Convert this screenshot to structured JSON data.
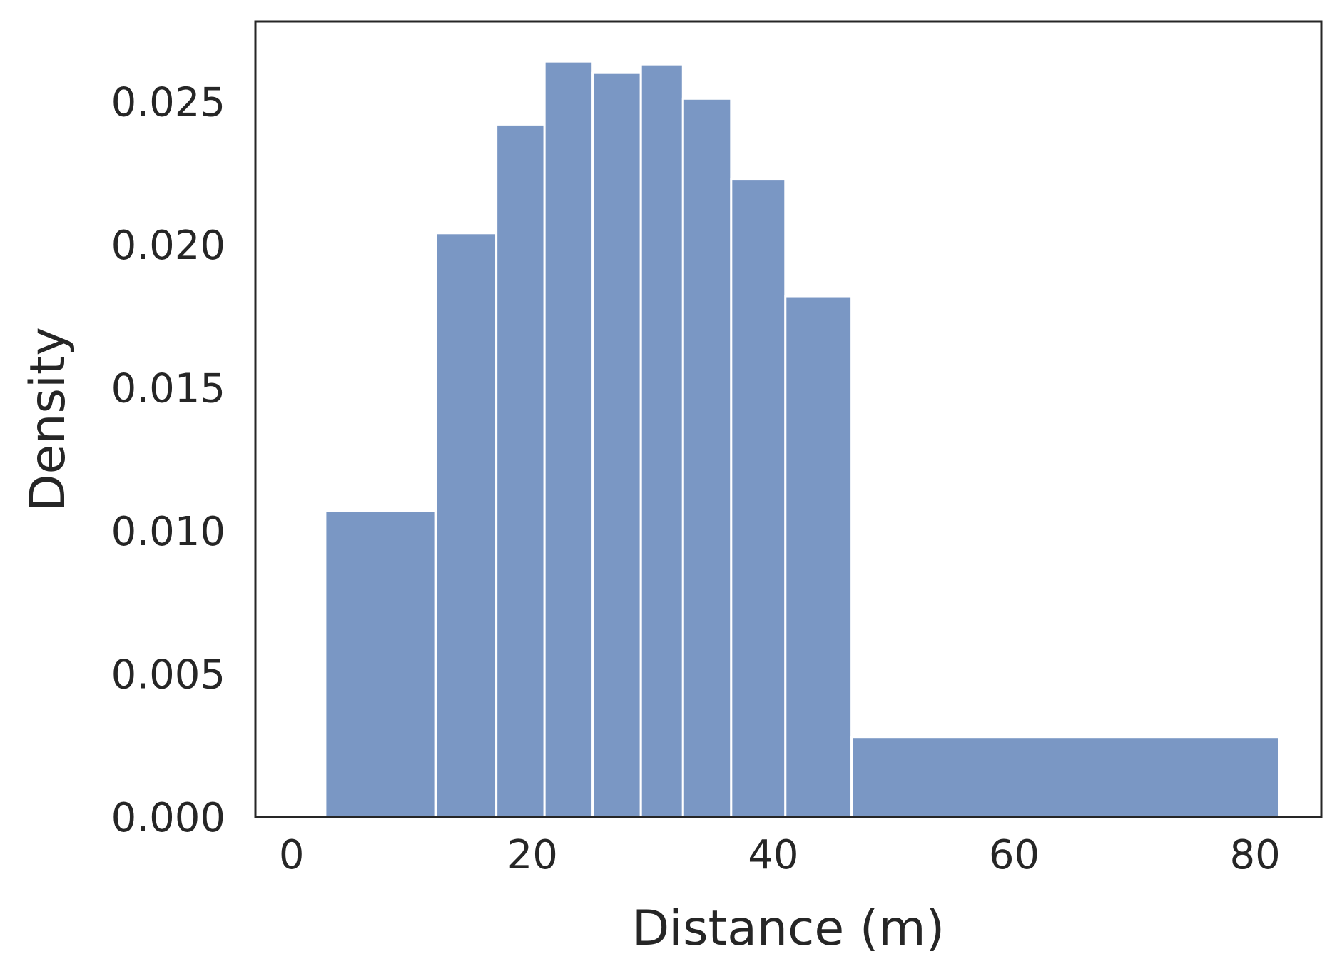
{
  "chart_data": {
    "type": "bar",
    "subtype": "histogram",
    "title": "",
    "xlabel": "Distance (m)",
    "ylabel": "Density",
    "xlim": [
      -3,
      85.5
    ],
    "ylim": [
      0.0,
      0.0278
    ],
    "x_ticks": [
      {
        "value": 0,
        "label": "0"
      },
      {
        "value": 20,
        "label": "20"
      },
      {
        "value": 40,
        "label": "40"
      },
      {
        "value": 60,
        "label": "60"
      },
      {
        "value": 80,
        "label": "80"
      }
    ],
    "y_ticks": [
      {
        "value": 0.0,
        "label": "0.000"
      },
      {
        "value": 0.005,
        "label": "0.005"
      },
      {
        "value": 0.01,
        "label": "0.010"
      },
      {
        "value": 0.015,
        "label": "0.015"
      },
      {
        "value": 0.02,
        "label": "0.020"
      },
      {
        "value": 0.025,
        "label": "0.025"
      }
    ],
    "bins": [
      {
        "x0": 2.8,
        "x1": 12.0,
        "density": 0.0107
      },
      {
        "x0": 12.0,
        "x1": 17.0,
        "density": 0.0204
      },
      {
        "x0": 17.0,
        "x1": 21.0,
        "density": 0.0242
      },
      {
        "x0": 21.0,
        "x1": 25.0,
        "density": 0.0264
      },
      {
        "x0": 25.0,
        "x1": 29.0,
        "density": 0.026
      },
      {
        "x0": 29.0,
        "x1": 32.5,
        "density": 0.0263
      },
      {
        "x0": 32.5,
        "x1": 36.5,
        "density": 0.0251
      },
      {
        "x0": 36.5,
        "x1": 41.0,
        "density": 0.0223
      },
      {
        "x0": 41.0,
        "x1": 46.5,
        "density": 0.0182
      },
      {
        "x0": 46.5,
        "x1": 82.0,
        "density": 0.0028
      }
    ],
    "bar_color": "#7a97c4",
    "bar_edge_color": "#ffffff",
    "frame_color": "#262626",
    "text_color": "#262626",
    "grid": false,
    "legend": false
  }
}
